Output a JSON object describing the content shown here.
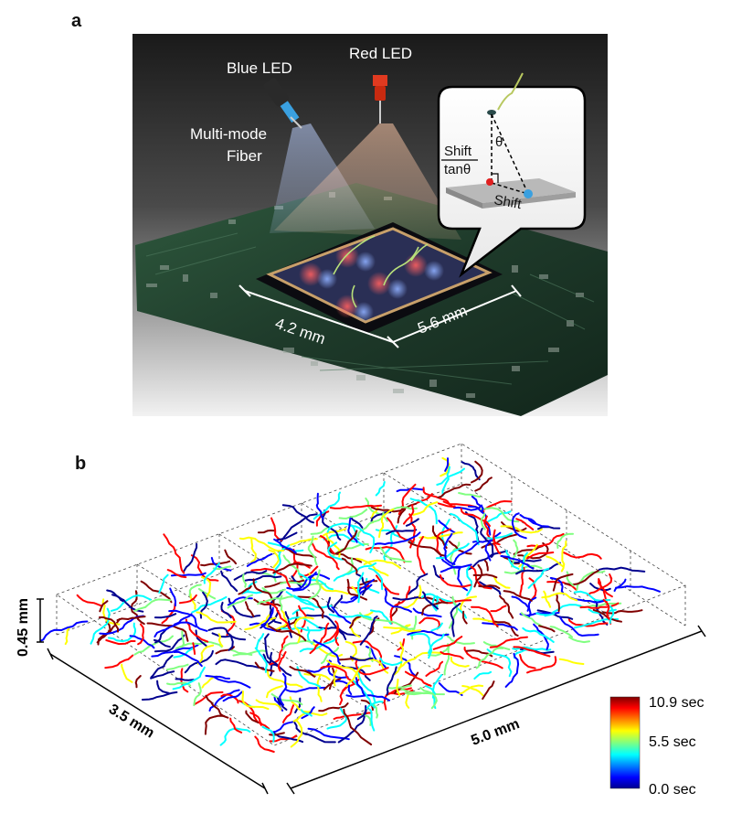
{
  "panel_a": {
    "label": "a",
    "blue_led": "Blue LED",
    "red_led": "Red LED",
    "fiber_line1": "Multi-mode",
    "fiber_line2": "Fiber",
    "dim_width": "4.2 mm",
    "dim_length": "5.6 mm",
    "inset": {
      "theta": "θ",
      "frac_num": "Shift",
      "frac_den": "tanθ",
      "shift": "Shift"
    },
    "colors": {
      "blue_led": "#3aa0e0",
      "red_led": "#e03a20",
      "board": "#1e3a2a"
    }
  },
  "panel_b": {
    "label": "b",
    "axis_height": "0.45 mm",
    "axis_depth": "3.5 mm",
    "axis_width": "5.0 mm",
    "colorbar": {
      "max": "10.9 sec",
      "mid": "5.5 sec",
      "min": "0.0 sec"
    },
    "trajectory_count": 520,
    "colormap": [
      "#00008f",
      "#0000ff",
      "#00ffff",
      "#80ff80",
      "#ffff00",
      "#ff0000",
      "#800000"
    ]
  }
}
